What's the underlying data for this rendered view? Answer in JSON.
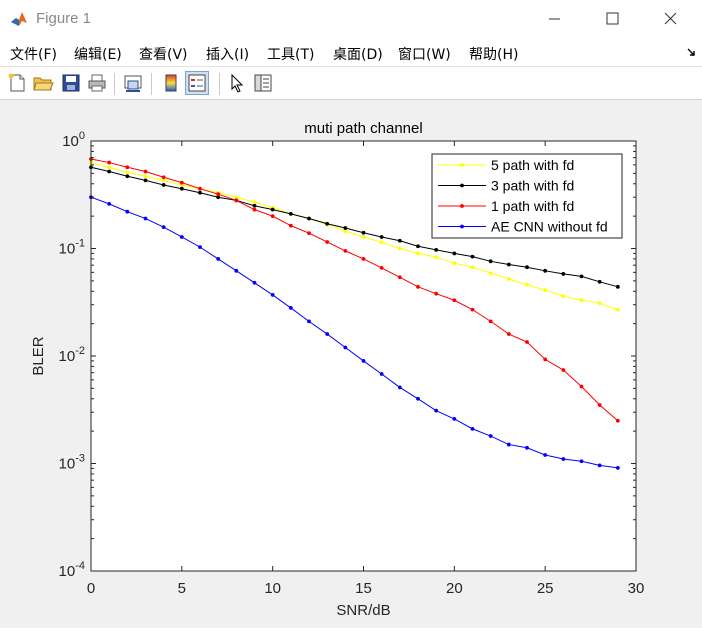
{
  "window": {
    "title": "Figure 1"
  },
  "menu": [
    "文件(F)",
    "编辑(E)",
    "查看(V)",
    "插入(I)",
    "工具(T)",
    "桌面(D)",
    "窗口(W)",
    "帮助(H)"
  ],
  "toolbar_icons": [
    "new-figure-icon",
    "open-file-icon",
    "save-icon",
    "print-icon",
    "link-plot-icon",
    "colorbar-icon",
    "legend-icon",
    "pointer-icon",
    "property-inspector-icon"
  ],
  "chart_data": {
    "type": "line",
    "title": "muti path channel",
    "xlabel": "SNR/dB",
    "ylabel": "BLER",
    "x_scale": "linear",
    "y_scale": "log",
    "xlim": [
      0,
      30
    ],
    "ylim": [
      0.0001,
      1
    ],
    "xticks": [
      "0",
      "5",
      "10",
      "15",
      "20",
      "25",
      "30"
    ],
    "yticks": [
      "10^0",
      "10^-1",
      "10^-2",
      "10^-3",
      "10^-4"
    ],
    "grid": false,
    "legend_position": "top-right",
    "x": [
      0,
      1,
      2,
      3,
      4,
      5,
      6,
      7,
      8,
      9,
      10,
      11,
      12,
      13,
      14,
      15,
      16,
      17,
      18,
      19,
      20,
      21,
      22,
      23,
      24,
      25,
      26,
      27,
      28,
      29
    ],
    "series": [
      {
        "name": "5 path with fd",
        "color": "#ffff00",
        "values": [
          0.63,
          0.57,
          0.51,
          0.47,
          0.43,
          0.39,
          0.36,
          0.33,
          0.3,
          0.27,
          0.24,
          0.21,
          0.19,
          0.167,
          0.145,
          0.128,
          0.114,
          0.1,
          0.09,
          0.083,
          0.073,
          0.067,
          0.059,
          0.052,
          0.046,
          0.041,
          0.036,
          0.033,
          0.031,
          0.027
        ]
      },
      {
        "name": "3 path with fd",
        "color": "#000000",
        "values": [
          0.57,
          0.52,
          0.47,
          0.43,
          0.39,
          0.36,
          0.33,
          0.3,
          0.28,
          0.25,
          0.23,
          0.21,
          0.19,
          0.17,
          0.155,
          0.14,
          0.128,
          0.118,
          0.105,
          0.097,
          0.09,
          0.084,
          0.076,
          0.071,
          0.067,
          0.062,
          0.058,
          0.055,
          0.049,
          0.044
        ]
      },
      {
        "name": "1 path with fd",
        "color": "#ff0000",
        "values": [
          0.68,
          0.63,
          0.57,
          0.52,
          0.46,
          0.41,
          0.36,
          0.32,
          0.28,
          0.23,
          0.2,
          0.163,
          0.139,
          0.115,
          0.095,
          0.08,
          0.066,
          0.054,
          0.044,
          0.038,
          0.033,
          0.027,
          0.021,
          0.016,
          0.0135,
          0.0093,
          0.0074,
          0.0052,
          0.0035,
          0.0025
        ]
      },
      {
        "name": "AE CNN without fd",
        "color": "#0000ff",
        "values": [
          0.3,
          0.26,
          0.22,
          0.19,
          0.158,
          0.128,
          0.103,
          0.08,
          0.062,
          0.048,
          0.037,
          0.028,
          0.021,
          0.016,
          0.012,
          0.009,
          0.0068,
          0.0051,
          0.004,
          0.0031,
          0.0026,
          0.0021,
          0.0018,
          0.0015,
          0.0014,
          0.0012,
          0.0011,
          0.00105,
          0.00096,
          0.00091
        ]
      }
    ]
  }
}
